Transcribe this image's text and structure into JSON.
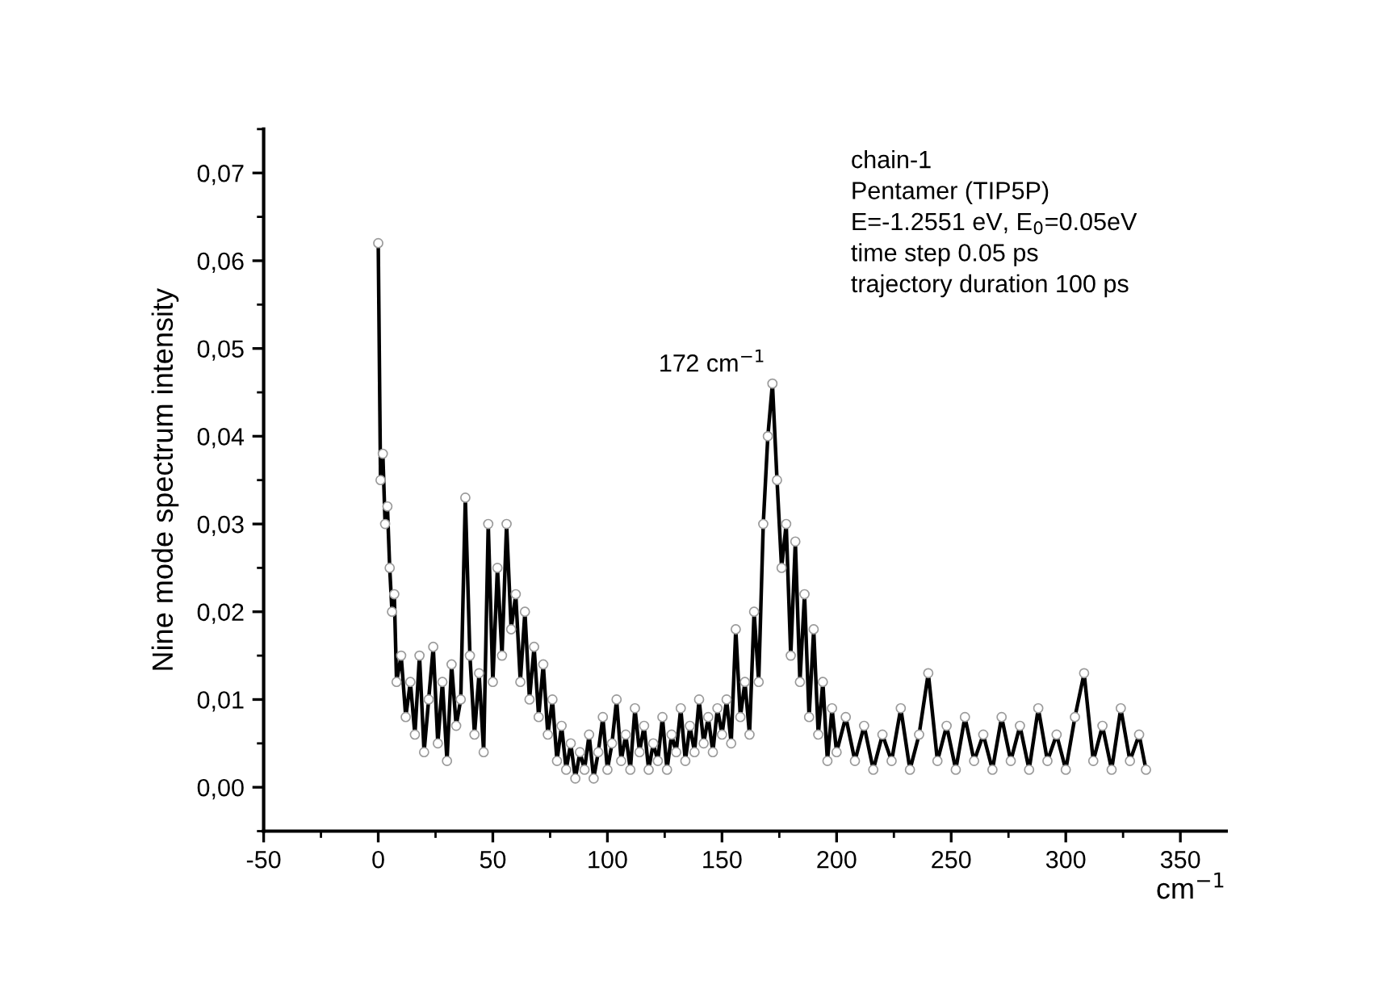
{
  "chart_data": {
    "type": "line",
    "xlabel": "cm$^{−1}$",
    "ylabel": "Nine mode spectrum intensity",
    "annotations": [
      "chain-1\nPentamer (TIP5P)\nE=-1.2551 eV, E$_{0}$=0.05eV\ntime step 0.05 ps\ntrajectory duration 100 ps",
      {
        "text": "172 cm$^{−1}$",
        "x": 172,
        "y": 0.046
      }
    ],
    "xlim": [
      -50,
      370
    ],
    "xticks": [
      -50,
      0,
      50,
      100,
      150,
      200,
      250,
      300,
      350
    ],
    "ylim": [
      -0.005,
      0.075
    ],
    "yticks": [
      {
        "value": 0,
        "label": "0,00"
      },
      {
        "value": 0.01,
        "label": "0,01"
      },
      {
        "value": 0.02,
        "label": "0,02"
      },
      {
        "value": 0.03,
        "label": "0,03"
      },
      {
        "value": 0.04,
        "label": "0,04"
      },
      {
        "value": 0.05,
        "label": "0,05"
      },
      {
        "value": 0.06,
        "label": "0,06"
      },
      {
        "value": 0.07,
        "label": "0,07"
      }
    ],
    "grid": false,
    "marker": "circle",
    "line_style": "solid",
    "series": [
      {
        "color": "#000000",
        "x": [
          0,
          1,
          2,
          3,
          4,
          5,
          6,
          7,
          8,
          10,
          12,
          14,
          16,
          18,
          20,
          22,
          24,
          26,
          28,
          30,
          32,
          34,
          36,
          38,
          40,
          42,
          44,
          46,
          48,
          50,
          52,
          54,
          56,
          58,
          60,
          62,
          64,
          66,
          68,
          70,
          72,
          74,
          76,
          78,
          80,
          82,
          84,
          86,
          88,
          90,
          92,
          94,
          96,
          98,
          100,
          102,
          104,
          106,
          108,
          110,
          112,
          114,
          116,
          118,
          120,
          122,
          124,
          126,
          128,
          130,
          132,
          134,
          136,
          138,
          140,
          142,
          144,
          146,
          148,
          150,
          152,
          154,
          156,
          158,
          160,
          162,
          164,
          166,
          168,
          170,
          172,
          174,
          176,
          178,
          180,
          182,
          184,
          186,
          188,
          190,
          192,
          194,
          196,
          198,
          200,
          204,
          208,
          212,
          216,
          220,
          224,
          228,
          232,
          236,
          240,
          244,
          248,
          252,
          256,
          260,
          264,
          268,
          272,
          276,
          280,
          284,
          288,
          292,
          296,
          300,
          304,
          308,
          312,
          316,
          320,
          324,
          328,
          332,
          335
        ],
        "values": [
          0.062,
          0.035,
          0.038,
          0.03,
          0.032,
          0.025,
          0.02,
          0.022,
          0.012,
          0.015,
          0.008,
          0.012,
          0.006,
          0.015,
          0.004,
          0.01,
          0.016,
          0.005,
          0.012,
          0.003,
          0.014,
          0.007,
          0.01,
          0.033,
          0.015,
          0.006,
          0.013,
          0.004,
          0.03,
          0.012,
          0.025,
          0.015,
          0.03,
          0.018,
          0.022,
          0.012,
          0.02,
          0.01,
          0.016,
          0.008,
          0.014,
          0.006,
          0.01,
          0.003,
          0.007,
          0.002,
          0.005,
          0.001,
          0.004,
          0.002,
          0.006,
          0.001,
          0.004,
          0.008,
          0.002,
          0.005,
          0.01,
          0.003,
          0.006,
          0.002,
          0.009,
          0.004,
          0.007,
          0.002,
          0.005,
          0.003,
          0.008,
          0.002,
          0.006,
          0.004,
          0.009,
          0.003,
          0.007,
          0.004,
          0.01,
          0.005,
          0.008,
          0.004,
          0.009,
          0.006,
          0.01,
          0.005,
          0.018,
          0.008,
          0.012,
          0.006,
          0.02,
          0.012,
          0.03,
          0.04,
          0.046,
          0.035,
          0.025,
          0.03,
          0.015,
          0.028,
          0.012,
          0.022,
          0.008,
          0.018,
          0.006,
          0.012,
          0.003,
          0.009,
          0.004,
          0.008,
          0.003,
          0.007,
          0.002,
          0.006,
          0.003,
          0.009,
          0.002,
          0.006,
          0.013,
          0.003,
          0.007,
          0.002,
          0.008,
          0.003,
          0.006,
          0.002,
          0.008,
          0.003,
          0.007,
          0.002,
          0.009,
          0.003,
          0.006,
          0.002,
          0.008,
          0.013,
          0.003,
          0.007,
          0.002,
          0.009,
          0.003,
          0.006,
          0.002
        ]
      }
    ]
  }
}
